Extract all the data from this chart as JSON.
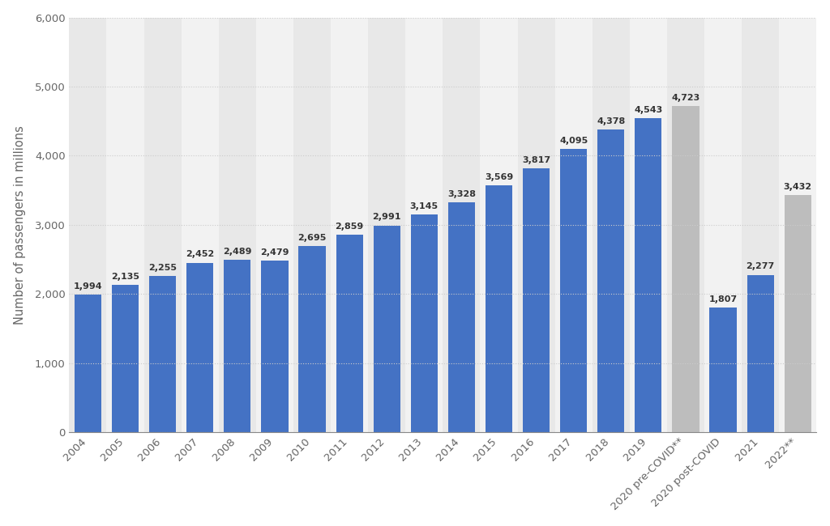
{
  "categories": [
    "2004",
    "2005",
    "2006",
    "2007",
    "2008",
    "2009",
    "2010",
    "2011",
    "2012",
    "2013",
    "2014",
    "2015",
    "2016",
    "2017",
    "2018",
    "2019",
    "2020 pre-COVID**",
    "2020 post-COVID",
    "2021",
    "2022**"
  ],
  "values": [
    1994,
    2135,
    2255,
    2452,
    2489,
    2479,
    2695,
    2859,
    2991,
    3145,
    3328,
    3569,
    3817,
    4095,
    4378,
    4543,
    4723,
    1807,
    2277,
    3432
  ],
  "bar_colors_blue": "#4472c4",
  "bar_colors_gray": "#bdbdbd",
  "gray_indices": [
    16,
    19
  ],
  "ylabel": "Number of passengers in millions",
  "ylim": [
    0,
    6000
  ],
  "yticks": [
    0,
    1000,
    2000,
    3000,
    4000,
    5000,
    6000
  ],
  "background_color": "#ffffff",
  "plot_bg_color": "#ffffff",
  "col_band_color_light": "#e8e8e8",
  "col_band_color_white": "#f2f2f2",
  "grid_color": "#cccccc",
  "label_color": "#666666",
  "value_label_color": "#333333",
  "value_fontsize": 8.0,
  "axis_fontsize": 9.5,
  "ylabel_fontsize": 10.5
}
